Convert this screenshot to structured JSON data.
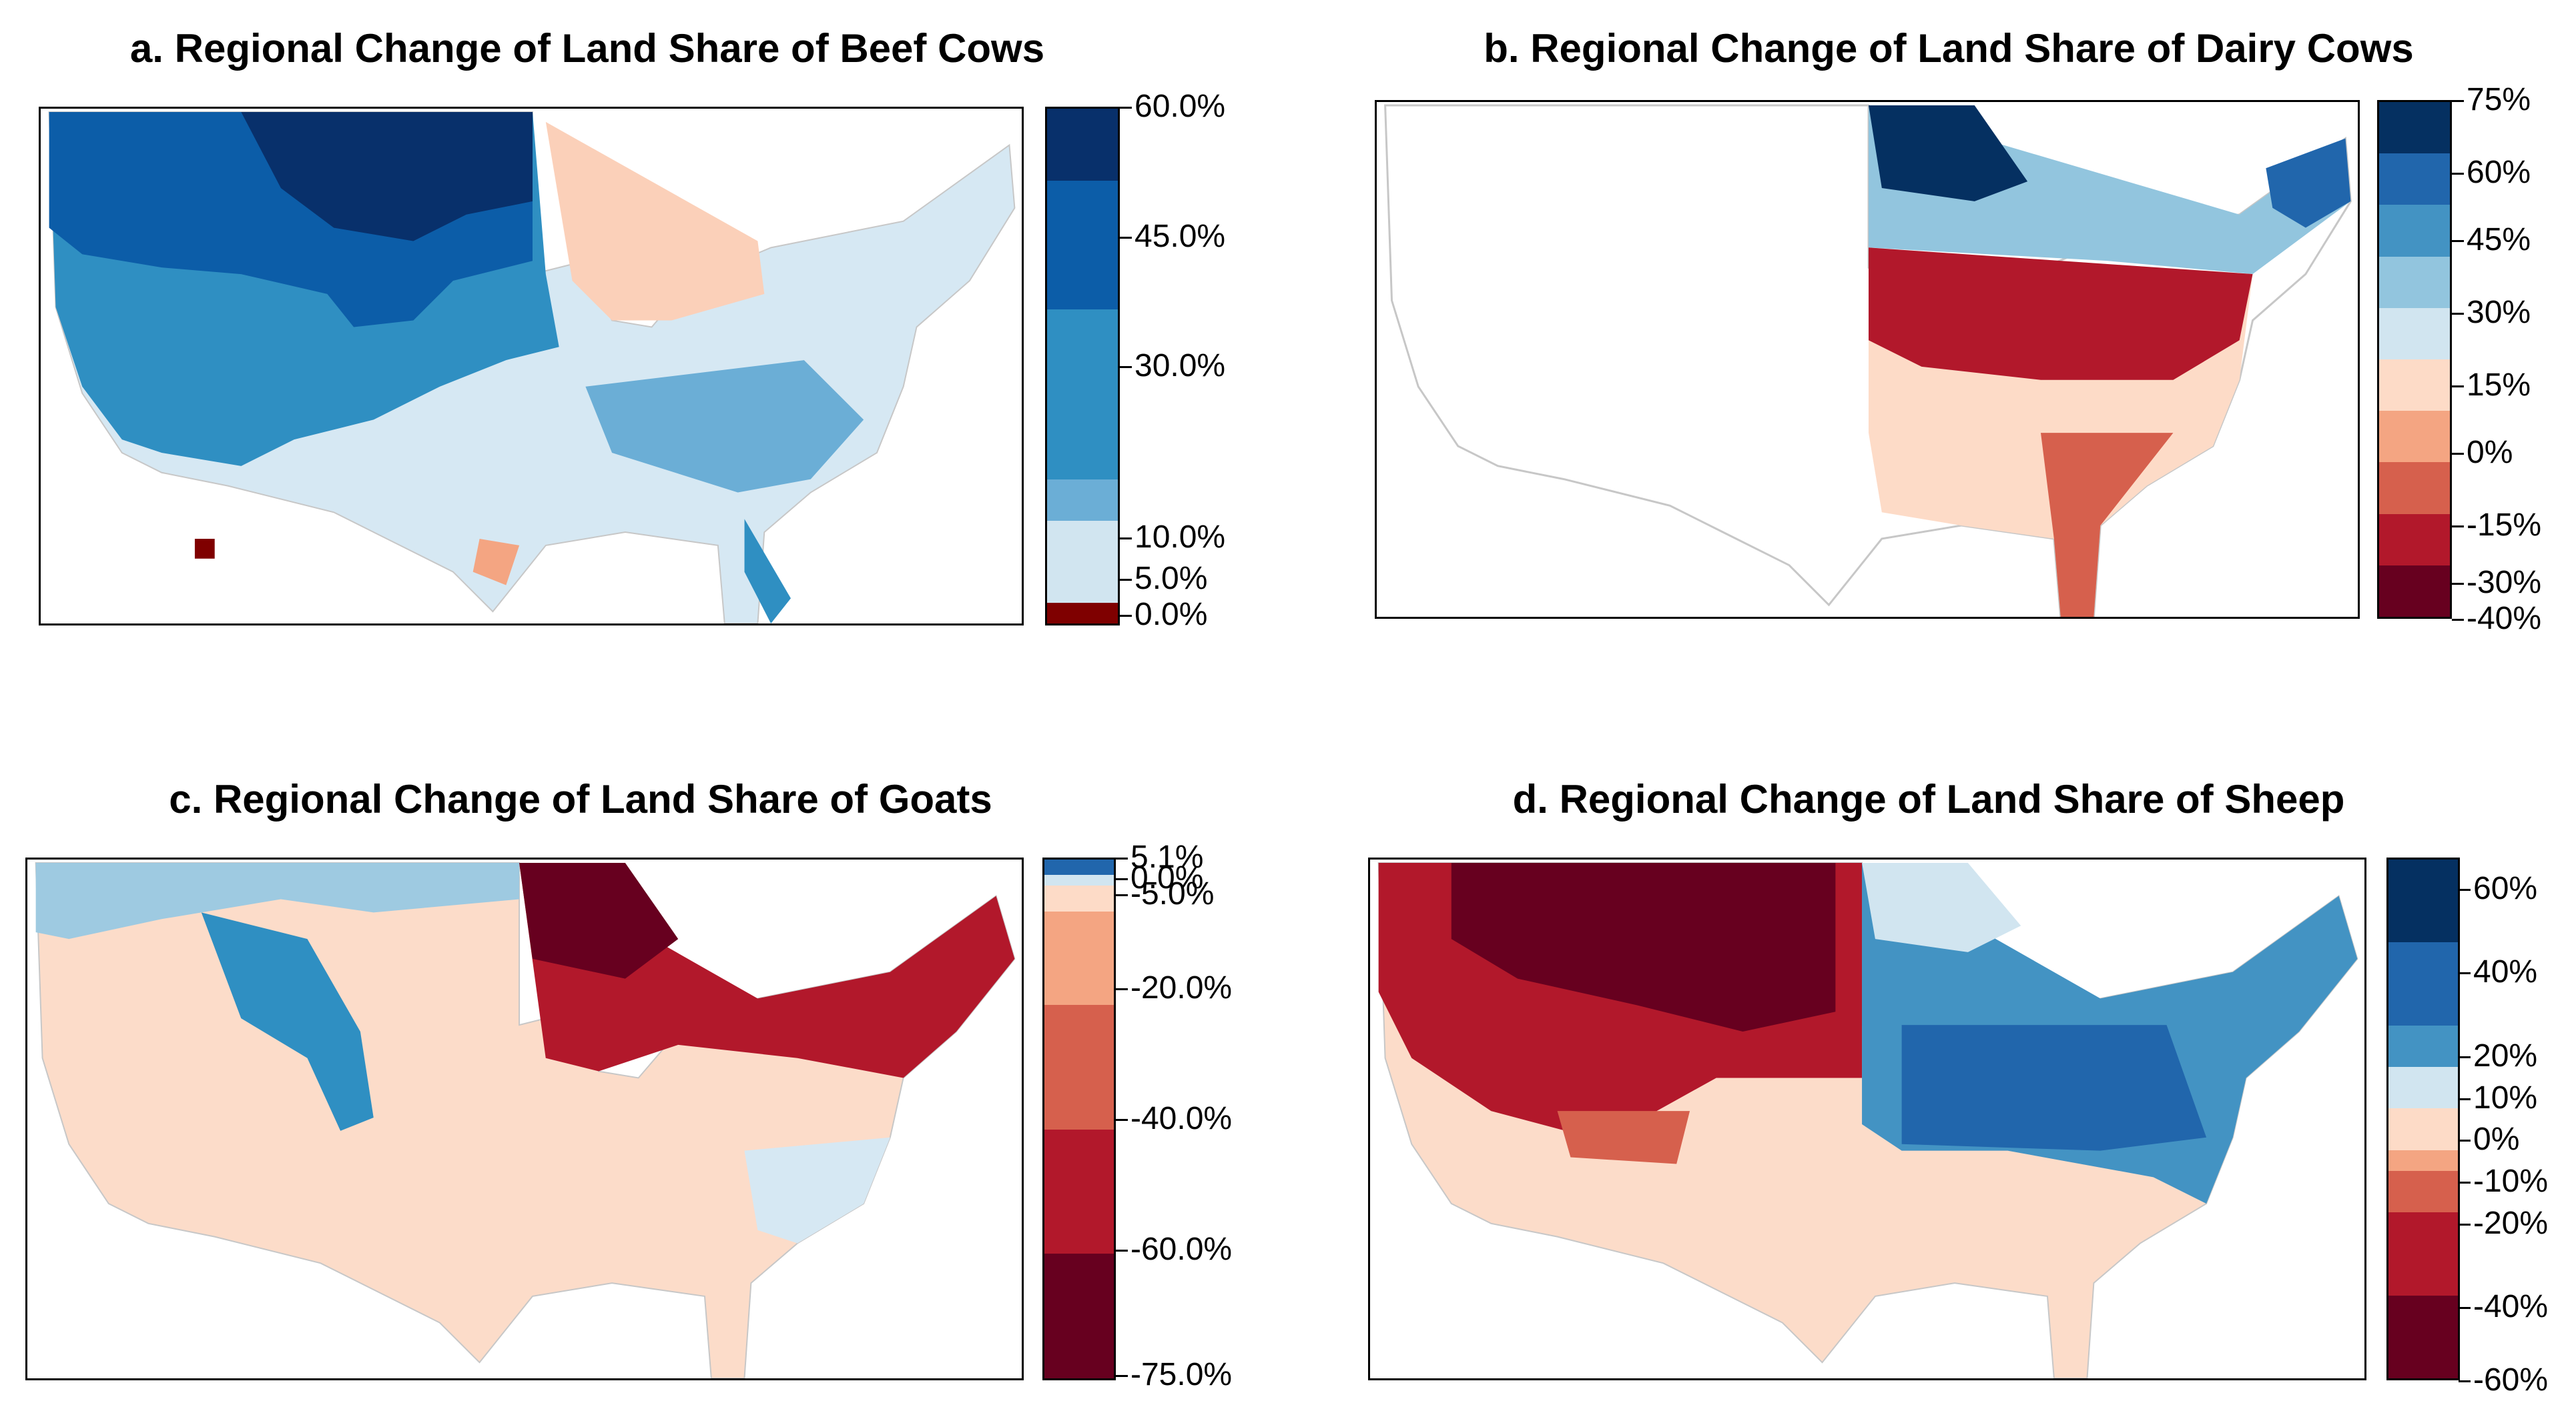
{
  "panels": [
    {
      "id": "a",
      "title": "a. Regional Change of Land Share of Beef Cows",
      "ticks": [
        "60.0%",
        "45.0%",
        "30.0%",
        "10.0%",
        "5.0%",
        "0.0%"
      ],
      "bands": [
        {
          "color": "#7f0000",
          "share": 0.04
        },
        {
          "color": "#d1e5f0",
          "share": 0.16
        },
        {
          "color": "#6baed6",
          "share": 0.08
        },
        {
          "color": "#2f8fc2",
          "share": 0.33
        },
        {
          "color": "#0c5da8",
          "share": 0.25
        },
        {
          "color": "#08306b",
          "share": 0.25
        }
      ]
    },
    {
      "id": "b",
      "title": "b. Regional Change of Land Share of Dairy Cows",
      "ticks": [
        "75%",
        "60%",
        "45%",
        "30%",
        "15%",
        "0%",
        "-15%",
        "-30%",
        "-40%"
      ],
      "bands": [
        {
          "color": "#67001f",
          "share": 0.1
        },
        {
          "color": "#b2182b",
          "share": 0.1
        },
        {
          "color": "#d6604d",
          "share": 0.1
        },
        {
          "color": "#f4a582",
          "share": 0.1
        },
        {
          "color": "#fddbc7",
          "share": 0.1
        },
        {
          "color": "#d1e5f0",
          "share": 0.1
        },
        {
          "color": "#92c5de",
          "share": 0.1
        },
        {
          "color": "#4393c3",
          "share": 0.1
        },
        {
          "color": "#2166ac",
          "share": 0.1
        },
        {
          "color": "#053061",
          "share": 0.1
        }
      ]
    },
    {
      "id": "c",
      "title": "c. Regional Change of Land Share of Goats",
      "ticks": [
        "5.1%",
        "0.0%",
        "-5.0%",
        "-20.0%",
        "-40.0%",
        "-60.0%",
        "-75.0%"
      ],
      "bands": [
        {
          "color": "#67001f",
          "share": 0.24
        },
        {
          "color": "#b2182b",
          "share": 0.24
        },
        {
          "color": "#d6604d",
          "share": 0.24
        },
        {
          "color": "#f4a582",
          "share": 0.18
        },
        {
          "color": "#fddbc7",
          "share": 0.05
        },
        {
          "color": "#d1e5f0",
          "share": 0.02
        },
        {
          "color": "#2166ac",
          "share": 0.03
        }
      ]
    },
    {
      "id": "d",
      "title": "d. Regional Change of Land Share of Sheep",
      "ticks": [
        "60%",
        "40%",
        "20%",
        "10%",
        "0%",
        "-10%",
        "-20%",
        "-40%",
        "-60%"
      ],
      "bands": [
        {
          "color": "#67001f",
          "share": 0.16
        },
        {
          "color": "#b2182b",
          "share": 0.16
        },
        {
          "color": "#d6604d",
          "share": 0.08
        },
        {
          "color": "#f4a582",
          "share": 0.04
        },
        {
          "color": "#fddbc7",
          "share": 0.08
        },
        {
          "color": "#d1e5f0",
          "share": 0.08
        },
        {
          "color": "#4393c3",
          "share": 0.08
        },
        {
          "color": "#2166ac",
          "share": 0.16
        },
        {
          "color": "#053061",
          "share": 0.16
        }
      ]
    }
  ]
}
